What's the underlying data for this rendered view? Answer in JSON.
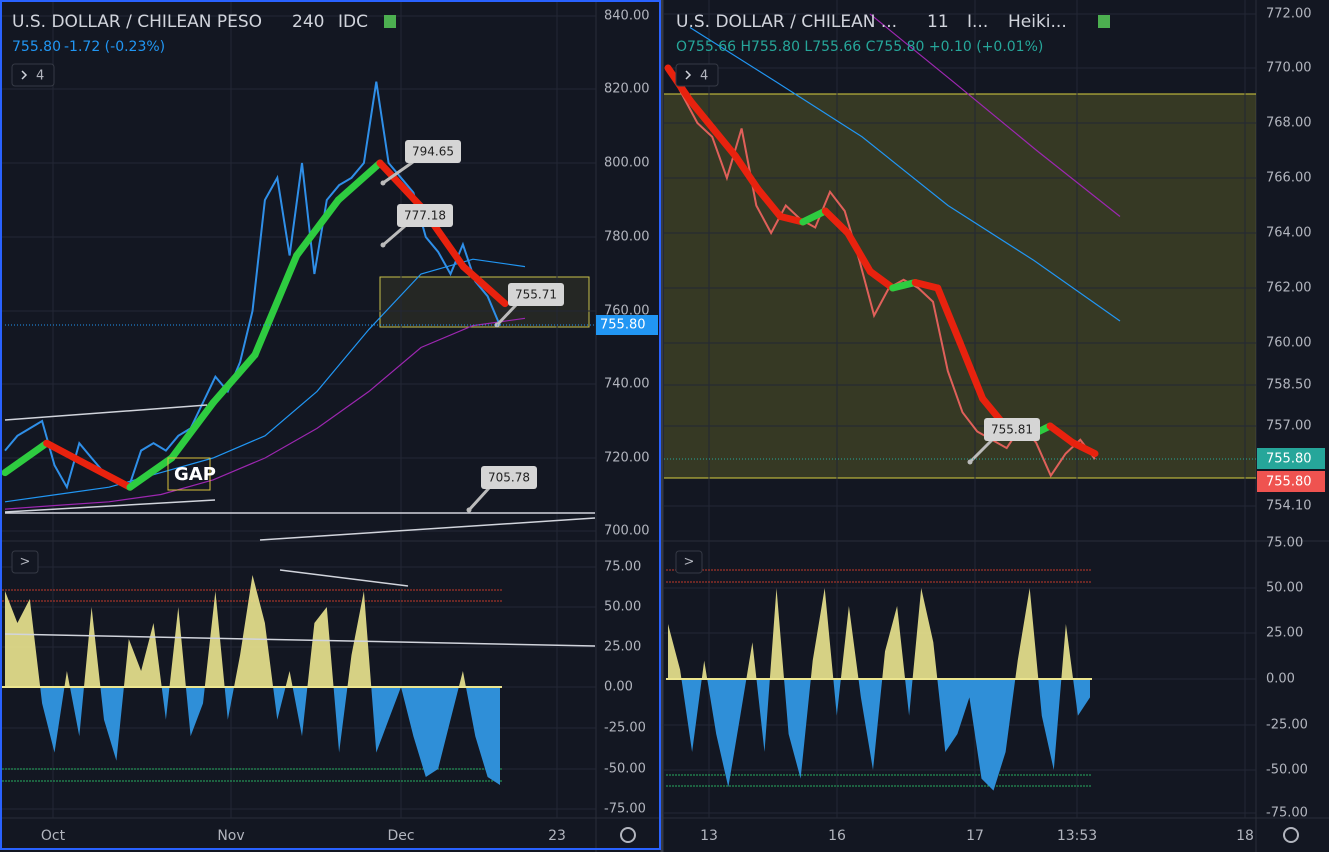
{
  "left": {
    "header": {
      "symbol": "U.S. DOLLAR / CHILEAN PESO",
      "interval": "240",
      "source": "IDC",
      "price": "755.80",
      "change": "-1.72 (-0.23%)"
    },
    "pane_toggle": "4",
    "osc_toggle": ">",
    "price_ticks": [
      {
        "value": 840,
        "label": "840.00"
      },
      {
        "value": 820,
        "label": "820.00"
      },
      {
        "value": 800,
        "label": "800.00"
      },
      {
        "value": 780,
        "label": "780.00"
      },
      {
        "value": 760,
        "label": "760.00"
      },
      {
        "value": 740,
        "label": "740.00"
      },
      {
        "value": 720,
        "label": "720.00"
      },
      {
        "value": 700,
        "label": "700.00"
      }
    ],
    "last_price": "755.80",
    "osc_ticks": [
      {
        "value": 75,
        "label": "75.00"
      },
      {
        "value": 50,
        "label": "50.00"
      },
      {
        "value": 25,
        "label": "25.00"
      },
      {
        "value": 0,
        "label": "0.00"
      },
      {
        "value": -25,
        "label": "-25.00"
      },
      {
        "value": -50,
        "label": "-50.00"
      },
      {
        "value": -75,
        "label": "-75.00"
      }
    ],
    "time_labels": [
      "Oct",
      "Nov",
      "Dec",
      "23"
    ],
    "callouts": [
      "794.65",
      "777.18",
      "755.71",
      "705.78"
    ],
    "gap": "GAP",
    "price": [
      722,
      726,
      728,
      730,
      718,
      712,
      724,
      720,
      716,
      714,
      712,
      722,
      724,
      722,
      726,
      728,
      735,
      742,
      738,
      746,
      760,
      790,
      796,
      775,
      800,
      770,
      790,
      794,
      796,
      800,
      822,
      800,
      796,
      792,
      780,
      776,
      770,
      778,
      768,
      764,
      756
    ],
    "trend": [
      716,
      724,
      718,
      712,
      720,
      735,
      748,
      775,
      790,
      800,
      788,
      772,
      762
    ],
    "ma_blue": [
      708,
      710,
      712,
      716,
      720,
      726,
      738,
      755,
      770,
      774,
      772
    ],
    "ma_purple": [
      706,
      707,
      708,
      710,
      714,
      720,
      728,
      738,
      750,
      756,
      758
    ],
    "osc": [
      60,
      40,
      55,
      -10,
      -40,
      10,
      -30,
      50,
      -20,
      -45,
      30,
      10,
      40,
      -20,
      50,
      -30,
      -10,
      60,
      -20,
      20,
      70,
      40,
      -20,
      10,
      -30,
      40,
      50,
      -40,
      20,
      60,
      -40,
      -20,
      0,
      -30,
      -55,
      -50,
      -20,
      10,
      -30,
      -55,
      -60
    ]
  },
  "right": {
    "header": {
      "symbol": "U.S. DOLLAR / CHILEAN ...",
      "interval": "11",
      "source": "I...",
      "style": "Heiki...",
      "ohlc": "O755.66 H755.80 L755.66 C755.80 +0.10 (+0.01%)"
    },
    "pane_toggle": "4",
    "osc_toggle": ">",
    "price_ticks": [
      {
        "value": 772,
        "label": "772.00"
      },
      {
        "value": 770,
        "label": "770.00"
      },
      {
        "value": 768,
        "label": "768.00"
      },
      {
        "value": 766,
        "label": "766.00"
      },
      {
        "value": 764,
        "label": "764.00"
      },
      {
        "value": 762,
        "label": "762.00"
      },
      {
        "value": 760,
        "label": "760.00"
      },
      {
        "value": 758.5,
        "label": "758.50"
      },
      {
        "value": 757,
        "label": "757.00"
      },
      {
        "value": 754.1,
        "label": "754.10"
      }
    ],
    "last_price_up": "755.80",
    "last_price_down": "755.80",
    "osc_ticks": [
      {
        "value": 75,
        "label": "75.00"
      },
      {
        "value": 50,
        "label": "50.00"
      },
      {
        "value": 25,
        "label": "25.00"
      },
      {
        "value": 0,
        "label": "0.00"
      },
      {
        "value": -25,
        "label": "-25.00"
      },
      {
        "value": -50,
        "label": "-50.00"
      },
      {
        "value": -75,
        "label": "-75.00"
      }
    ],
    "time_labels": [
      "13",
      "16",
      "17",
      "13:53",
      "18"
    ],
    "callouts": [
      "755.81"
    ],
    "price": [
      770,
      769,
      768,
      767.5,
      766,
      767.8,
      765,
      764,
      765,
      764.5,
      764.2,
      765.5,
      764.8,
      763,
      761,
      762,
      762.3,
      762,
      761.5,
      759,
      757.5,
      756.8,
      756.5,
      756.2,
      757,
      756.4,
      755.2,
      756,
      756.5,
      755.8
    ],
    "trend": [
      770,
      768.8,
      767.8,
      766.8,
      765.6,
      764.6,
      764.4,
      764.8,
      764,
      762.6,
      762,
      762.2,
      762,
      760,
      758,
      757,
      756.6,
      757,
      756.4,
      756
    ],
    "ma_blue": [
      771.5,
      769.5,
      767.5,
      765,
      763,
      760.8
    ],
    "ma_purple": [
      772,
      769.5,
      767,
      764.6
    ],
    "osc": [
      30,
      5,
      -40,
      10,
      -30,
      -60,
      -20,
      20,
      -40,
      50,
      -30,
      -55,
      10,
      50,
      -20,
      40,
      -10,
      -50,
      15,
      40,
      -20,
      50,
      20,
      -40,
      -30,
      -10,
      -55,
      -62,
      -40,
      10,
      50,
      -20,
      -50,
      30,
      -20,
      -10
    ]
  }
}
